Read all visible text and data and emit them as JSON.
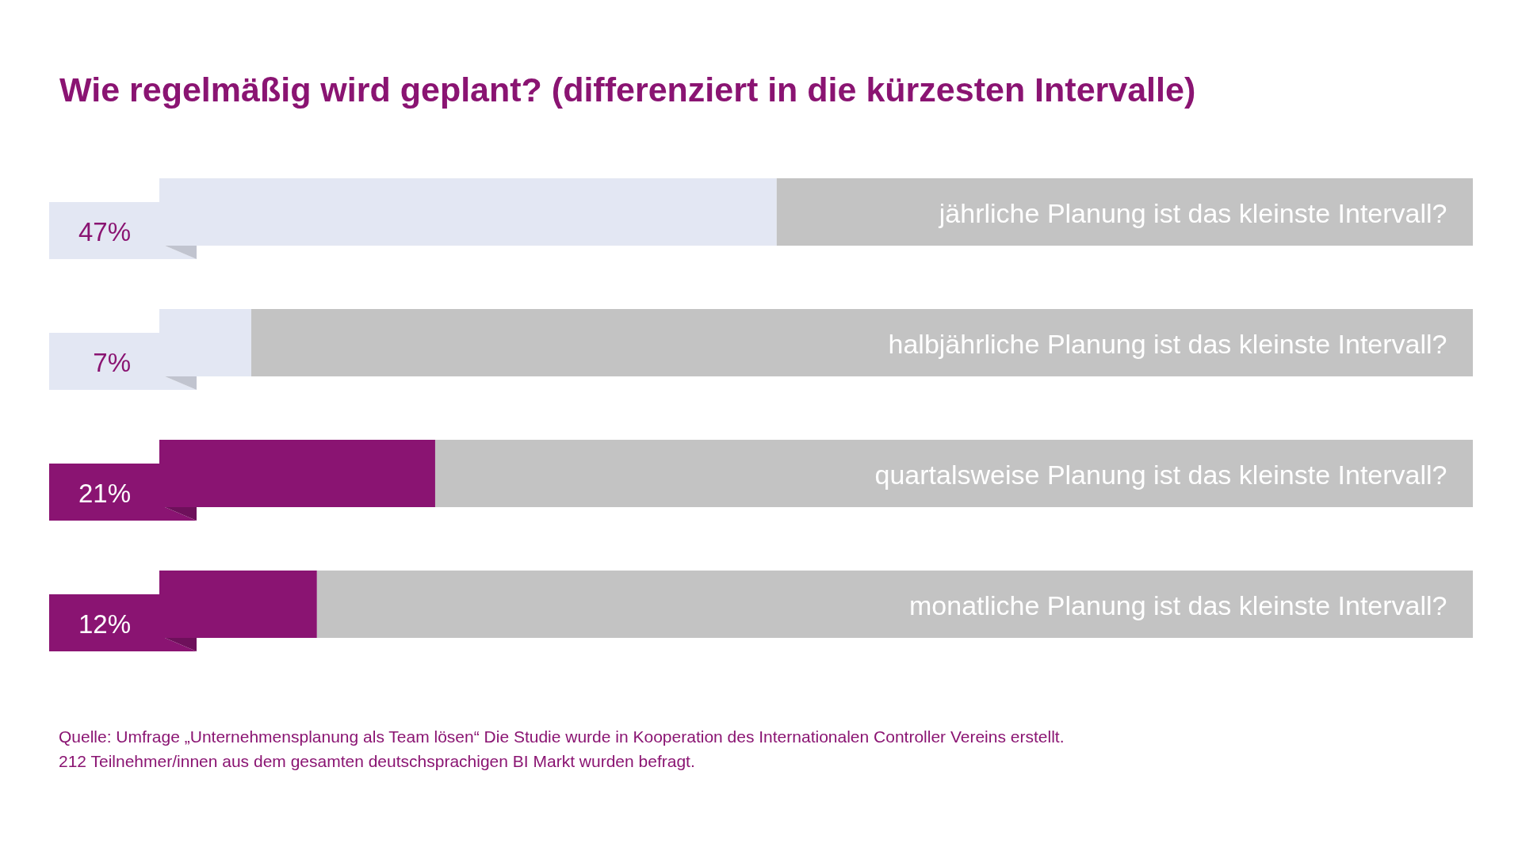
{
  "chart_data": {
    "type": "bar",
    "orientation": "horizontal",
    "stacked": true,
    "title": "Wie regelmäßig wird geplant? (differenziert in die kürzesten Intervalle)",
    "categories": [
      "jährliche Planung ist das kleinste Intervall?",
      "halbjährliche Planung ist das kleinste Intervall?",
      "quartalsweise Planung ist das kleinste Intervall?",
      "monatliche Planung ist das kleinste Intervall?"
    ],
    "series": [
      {
        "colors": [
          "#e3e7f3",
          "#e3e7f3",
          "#8a1472",
          "#8a1472"
        ],
        "values": [
          47,
          7,
          21,
          12
        ],
        "value_labels": [
          "47%",
          "7%",
          "21%",
          "12%"
        ]
      },
      {
        "color": "#c3c3c3",
        "values": [
          53,
          93,
          79,
          88
        ]
      }
    ],
    "xlim": [
      0,
      100
    ],
    "tick_labels": "y",
    "annotations": [
      "Quelle: Umfrage „Unternehmensplanung als Team lösen“ Die Studie wurde in Kooperation des Internationalen Controller Vereins erstellt.",
      "212 Teilnehmer/innen aus dem gesamten deutschsprachigen BI Markt wurden befragt."
    ]
  }
}
